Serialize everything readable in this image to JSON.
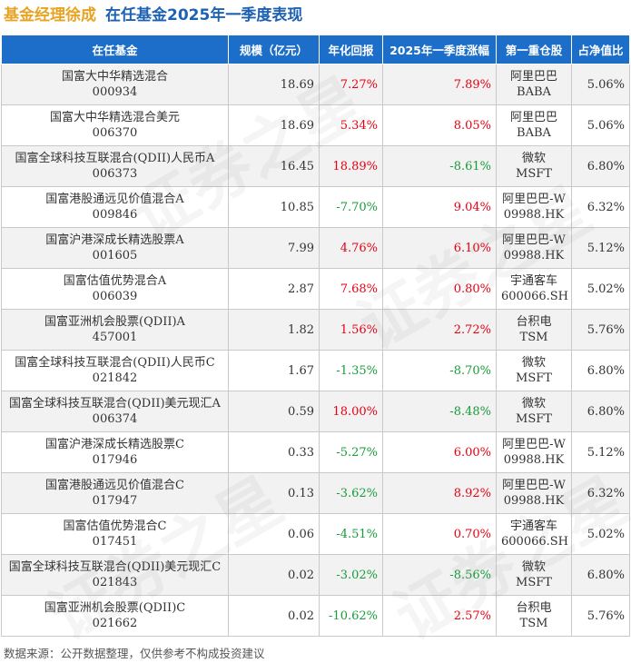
{
  "header": {
    "manager": "基金经理徐成",
    "subtitle": "在任基金2025年一季度表现"
  },
  "table": {
    "columns": [
      "在任基金",
      "规模（亿元）",
      "年化回报",
      "2025年一季度涨幅",
      "第一重仓股",
      "占净值比"
    ],
    "rows": [
      {
        "name": "国富大中华精选混合",
        "code": "000934",
        "scale": "18.69",
        "annual": "7.27%",
        "q1": "7.89%",
        "stock_name": "阿里巴巴",
        "stock_code": "BABA",
        "ratio": "5.06%"
      },
      {
        "name": "国富大中华精选混合美元",
        "code": "006370",
        "scale": "18.69",
        "annual": "5.34%",
        "q1": "8.05%",
        "stock_name": "阿里巴巴",
        "stock_code": "BABA",
        "ratio": "5.06%"
      },
      {
        "name": "国富全球科技互联混合(QDII)人民币A",
        "code": "006373",
        "scale": "16.45",
        "annual": "18.89%",
        "q1": "-8.61%",
        "stock_name": "微软",
        "stock_code": "MSFT",
        "ratio": "6.80%"
      },
      {
        "name": "国富港股通远见价值混合A",
        "code": "009846",
        "scale": "10.85",
        "annual": "-7.70%",
        "q1": "9.04%",
        "stock_name": "阿里巴巴-W",
        "stock_code": "09988.HK",
        "ratio": "6.32%"
      },
      {
        "name": "国富沪港深成长精选股票A",
        "code": "001605",
        "scale": "7.99",
        "annual": "4.76%",
        "q1": "6.10%",
        "stock_name": "阿里巴巴-W",
        "stock_code": "09988.HK",
        "ratio": "5.12%"
      },
      {
        "name": "国富估值优势混合A",
        "code": "006039",
        "scale": "2.87",
        "annual": "7.68%",
        "q1": "0.80%",
        "stock_name": "宇通客车",
        "stock_code": "600066.SH",
        "ratio": "5.02%"
      },
      {
        "name": "国富亚洲机会股票(QDII)A",
        "code": "457001",
        "scale": "1.82",
        "annual": "1.56%",
        "q1": "2.72%",
        "stock_name": "台积电",
        "stock_code": "TSM",
        "ratio": "5.76%"
      },
      {
        "name": "国富全球科技互联混合(QDII)人民币C",
        "code": "021842",
        "scale": "1.67",
        "annual": "-1.35%",
        "q1": "-8.70%",
        "stock_name": "微软",
        "stock_code": "MSFT",
        "ratio": "6.80%"
      },
      {
        "name": "国富全球科技互联混合(QDII)美元现汇A",
        "code": "006374",
        "scale": "0.59",
        "annual": "18.00%",
        "q1": "-8.48%",
        "stock_name": "微软",
        "stock_code": "MSFT",
        "ratio": "6.80%"
      },
      {
        "name": "国富沪港深成长精选股票C",
        "code": "017946",
        "scale": "0.33",
        "annual": "-5.27%",
        "q1": "6.00%",
        "stock_name": "阿里巴巴-W",
        "stock_code": "09988.HK",
        "ratio": "5.12%"
      },
      {
        "name": "国富港股通远见价值混合C",
        "code": "017947",
        "scale": "0.13",
        "annual": "-3.62%",
        "q1": "8.92%",
        "stock_name": "阿里巴巴-W",
        "stock_code": "09988.HK",
        "ratio": "6.32%"
      },
      {
        "name": "国富估值优势混合C",
        "code": "017451",
        "scale": "0.06",
        "annual": "-4.51%",
        "q1": "0.70%",
        "stock_name": "宇通客车",
        "stock_code": "600066.SH",
        "ratio": "5.02%"
      },
      {
        "name": "国富全球科技互联混合(QDII)美元现汇C",
        "code": "021843",
        "scale": "0.02",
        "annual": "-3.02%",
        "q1": "-8.56%",
        "stock_name": "微软",
        "stock_code": "MSFT",
        "ratio": "6.80%"
      },
      {
        "name": "国富亚洲机会股票(QDII)C",
        "code": "021662",
        "scale": "0.02",
        "annual": "-10.62%",
        "q1": "2.57%",
        "stock_name": "台积电",
        "stock_code": "TSM",
        "ratio": "5.76%"
      }
    ]
  },
  "colors": {
    "manager": "#e7a321",
    "subtitle": "#1d61b3",
    "header_bg": "#1d6ec8",
    "positive": "#e60012",
    "negative": "#189b3a"
  },
  "watermark_text": "证券之星",
  "footer": "数据来源：公开数据整理，仅供参考不构成投资建议"
}
